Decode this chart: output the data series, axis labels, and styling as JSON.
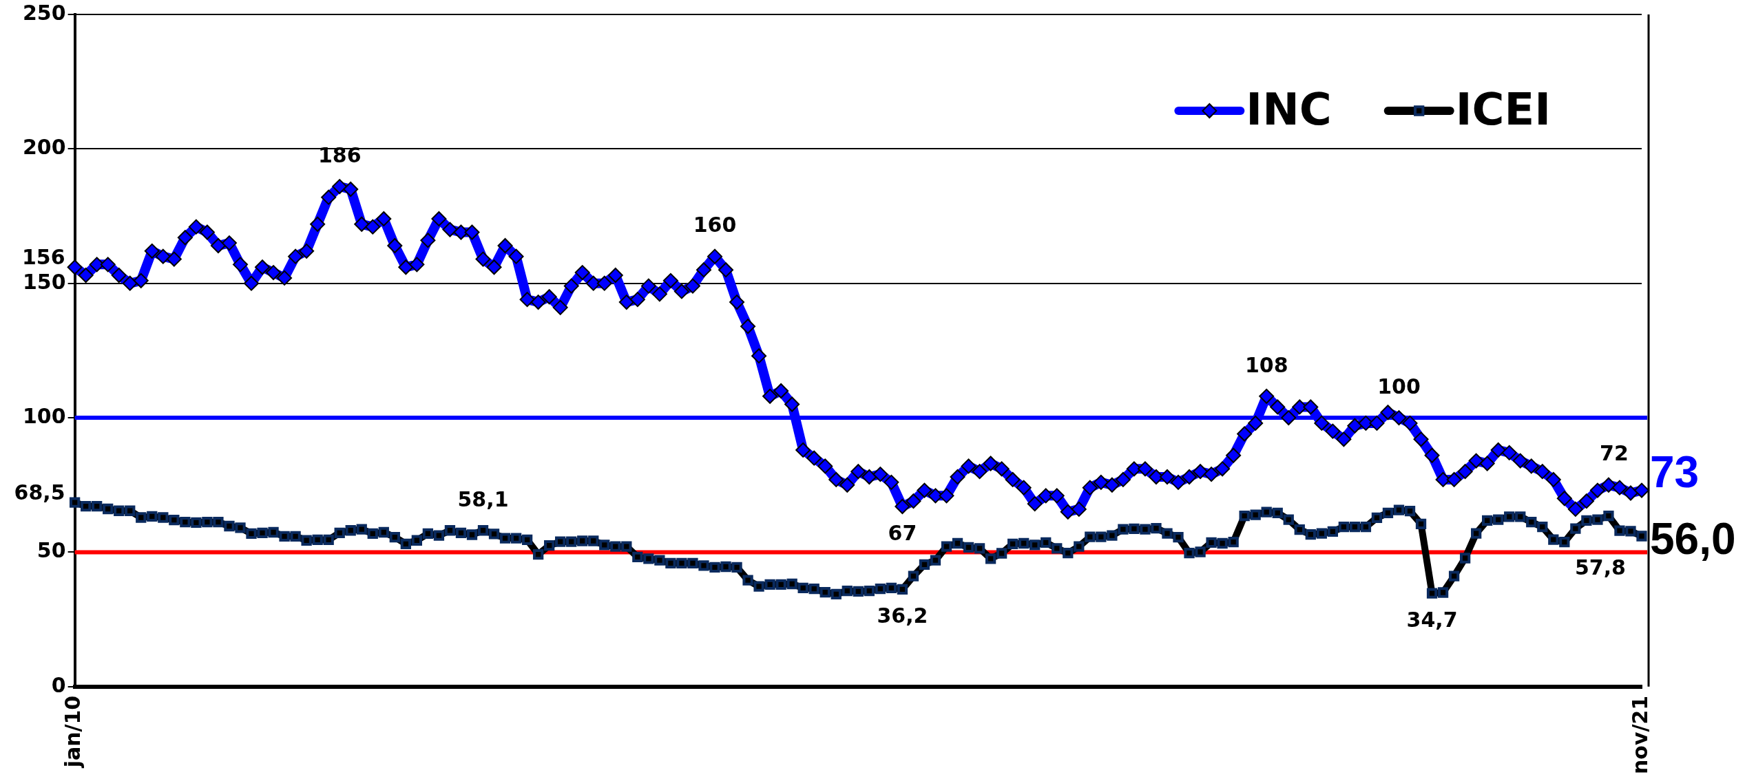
{
  "chart_data": {
    "type": "line",
    "categories": [
      "jan/10",
      null,
      null,
      null,
      null,
      null,
      null,
      null,
      null,
      null,
      null,
      null,
      null,
      null,
      null,
      null,
      null,
      null,
      null,
      null,
      null,
      null,
      null,
      null,
      null,
      null,
      null,
      null,
      null,
      null,
      null,
      null,
      null,
      null,
      null,
      null,
      null,
      null,
      null,
      null,
      null,
      null,
      null,
      null,
      null,
      null,
      null,
      null,
      null,
      null,
      null,
      null,
      null,
      null,
      null,
      null,
      null,
      null,
      null,
      null,
      null,
      null,
      null,
      null,
      null,
      null,
      null,
      null,
      null,
      null,
      null,
      null,
      null,
      null,
      null,
      null,
      null,
      null,
      null,
      null,
      null,
      null,
      null,
      null,
      null,
      null,
      null,
      null,
      null,
      null,
      null,
      null,
      null,
      null,
      null,
      null,
      null,
      null,
      null,
      null,
      null,
      null,
      null,
      null,
      null,
      null,
      null,
      null,
      null,
      null,
      null,
      null,
      null,
      null,
      null,
      null,
      null,
      null,
      null,
      null,
      null,
      null,
      null,
      null,
      null,
      null,
      null,
      null,
      null,
      null,
      null,
      null,
      null,
      null,
      null,
      null,
      null,
      null,
      null,
      null,
      null,
      null,
      "nov/21"
    ],
    "series": [
      {
        "name": "INC",
        "color": "#0000ff",
        "marker": "diamond",
        "values": [
          156,
          153,
          157,
          157,
          153,
          150,
          151,
          162,
          160,
          159,
          167,
          171,
          169,
          164,
          165,
          157,
          150,
          156,
          154,
          152,
          160,
          162,
          172,
          182,
          186,
          185,
          172,
          171,
          174,
          164,
          156,
          157,
          166,
          174,
          170,
          169,
          169,
          159,
          156,
          164,
          160,
          144,
          143,
          145,
          141,
          149,
          154,
          150,
          150,
          153,
          143,
          144,
          149,
          146,
          151,
          147,
          149,
          155,
          160,
          155,
          143,
          134,
          123,
          108,
          110,
          105,
          88,
          85,
          82,
          77,
          75,
          80,
          78,
          79,
          76,
          67,
          69,
          73,
          71,
          71,
          78,
          82,
          80,
          83,
          81,
          77,
          74,
          68,
          71,
          71,
          65,
          66,
          74,
          76,
          75,
          77,
          81,
          81,
          78,
          78,
          76,
          78,
          80,
          79,
          81,
          86,
          94,
          98,
          108,
          104,
          100,
          104,
          104,
          98,
          95,
          92,
          97,
          98,
          98,
          102,
          100,
          98,
          92,
          86,
          77,
          77,
          80,
          84,
          83,
          88,
          87,
          84,
          82,
          80,
          77,
          70,
          66,
          69,
          73,
          75,
          74,
          72,
          73
        ],
        "value_labels": [
          "156",
          null,
          null,
          null,
          null,
          null,
          null,
          null,
          null,
          null,
          null,
          null,
          null,
          null,
          null,
          null,
          null,
          null,
          null,
          null,
          null,
          null,
          null,
          null,
          "186",
          null,
          null,
          null,
          null,
          null,
          null,
          null,
          null,
          null,
          null,
          null,
          null,
          null,
          null,
          null,
          null,
          null,
          null,
          null,
          null,
          null,
          null,
          null,
          null,
          null,
          null,
          null,
          null,
          null,
          null,
          null,
          null,
          null,
          "160",
          null,
          null,
          null,
          null,
          null,
          null,
          null,
          null,
          null,
          null,
          null,
          null,
          null,
          null,
          null,
          null,
          "67",
          null,
          null,
          null,
          null,
          null,
          null,
          null,
          null,
          null,
          null,
          null,
          null,
          null,
          null,
          null,
          null,
          null,
          null,
          null,
          null,
          null,
          null,
          null,
          null,
          null,
          null,
          null,
          null,
          null,
          null,
          null,
          null,
          "108",
          null,
          null,
          null,
          null,
          null,
          null,
          null,
          null,
          null,
          null,
          null,
          "100",
          null,
          null,
          null,
          null,
          null,
          null,
          null,
          null,
          null,
          null,
          null,
          null,
          null,
          null,
          null,
          null,
          null,
          null,
          null,
          null,
          "72",
          "73"
        ]
      },
      {
        "name": "ICEI",
        "color": "#000000",
        "marker": "square",
        "values": [
          68.5,
          67.1,
          67.1,
          66.1,
          65.4,
          65.4,
          62.9,
          63.3,
          62.9,
          62.0,
          61.2,
          61.0,
          61.2,
          61.2,
          59.7,
          59.1,
          56.9,
          57.2,
          57.4,
          55.9,
          55.9,
          54.4,
          54.6,
          54.6,
          57.2,
          58.1,
          58.5,
          56.9,
          57.4,
          55.6,
          53.1,
          54.4,
          56.9,
          56.2,
          58.1,
          57.2,
          56.5,
          58.1,
          56.8,
          55.2,
          55.2,
          54.6,
          49.2,
          52.5,
          53.9,
          53.9,
          54.2,
          54.2,
          52.7,
          52.1,
          52.1,
          48.2,
          47.6,
          47.0,
          45.9,
          45.9,
          45.9,
          45.0,
          44.4,
          44.6,
          44.4,
          39.6,
          37.3,
          38.0,
          38.0,
          38.2,
          36.7,
          36.4,
          35.1,
          34.4,
          35.6,
          35.4,
          35.6,
          36.4,
          36.7,
          36.2,
          41.1,
          45.4,
          47.0,
          52.1,
          53.3,
          51.8,
          51.4,
          47.6,
          49.6,
          53.1,
          53.3,
          52.7,
          53.6,
          51.4,
          49.7,
          52.1,
          55.7,
          55.7,
          56.2,
          58.5,
          58.7,
          58.5,
          58.9,
          57.0,
          55.6,
          49.7,
          50.1,
          53.6,
          53.3,
          53.8,
          63.5,
          63.9,
          64.9,
          64.6,
          62.1,
          58.4,
          56.6,
          57.0,
          57.7,
          59.4,
          59.4,
          59.4,
          62.8,
          64.6,
          65.7,
          65.3,
          60.5,
          34.7,
          35.0,
          41.1,
          47.8,
          57.0,
          61.8,
          62.1,
          63.2,
          63.2,
          61.2,
          59.4,
          54.7,
          53.8,
          58.8,
          61.8,
          62.1,
          63.5,
          58.0,
          57.8,
          56.0
        ],
        "value_labels": [
          "68,5",
          null,
          null,
          null,
          null,
          null,
          null,
          null,
          null,
          null,
          null,
          null,
          null,
          null,
          null,
          null,
          null,
          null,
          null,
          null,
          null,
          null,
          null,
          null,
          null,
          null,
          null,
          null,
          null,
          null,
          null,
          null,
          null,
          null,
          null,
          null,
          null,
          "58,1",
          null,
          null,
          null,
          null,
          null,
          null,
          null,
          null,
          null,
          null,
          null,
          null,
          null,
          null,
          null,
          null,
          null,
          null,
          null,
          null,
          null,
          null,
          null,
          null,
          null,
          null,
          null,
          null,
          null,
          null,
          null,
          null,
          null,
          null,
          null,
          null,
          null,
          "36,2",
          null,
          null,
          null,
          null,
          null,
          null,
          null,
          null,
          null,
          null,
          null,
          null,
          null,
          null,
          null,
          null,
          null,
          null,
          null,
          null,
          null,
          null,
          null,
          null,
          null,
          null,
          null,
          null,
          null,
          null,
          null,
          null,
          null,
          null,
          null,
          null,
          null,
          null,
          null,
          null,
          null,
          null,
          null,
          null,
          null,
          null,
          null,
          "34,7",
          null,
          null,
          null,
          null,
          null,
          null,
          null,
          null,
          null,
          null,
          null,
          null,
          null,
          null,
          null,
          null,
          null,
          "57,8",
          "56,0"
        ]
      }
    ],
    "ylim": [
      0,
      250
    ],
    "yticks": [
      0,
      50,
      100,
      150,
      200,
      250
    ],
    "grid": "y",
    "legend": "top right",
    "ref_lines": [
      {
        "axis": "y",
        "value": 100,
        "color": "#0000ff"
      },
      {
        "axis": "y",
        "value": 50,
        "color": "#ff0000"
      }
    ]
  }
}
